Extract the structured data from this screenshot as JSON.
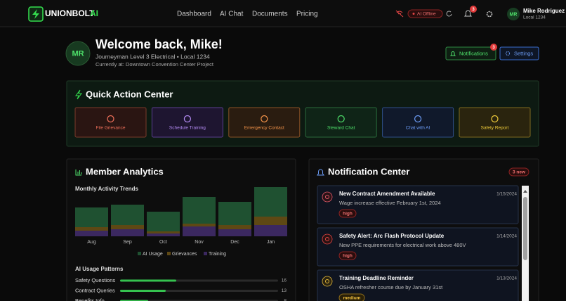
{
  "header": {
    "brand": "UNIONBOLT",
    "brand_suffix": "AI",
    "nav": [
      "Dashboard",
      "AI Chat",
      "Documents",
      "Pricing"
    ],
    "status": "AI Offline",
    "notification_count": "3",
    "user": {
      "initials": "MR",
      "name": "Mike Rodriguez",
      "local": "Local 1234"
    }
  },
  "welcome": {
    "initials": "MR",
    "title": "Welcome back, Mike!",
    "subtitle": "Journeyman Level 3 Electrical • Local 1234",
    "location": "Currently at: Downtown Convention Center Project",
    "buttons": {
      "notifications": "Notifications",
      "badge": "3",
      "settings": "Settings"
    }
  },
  "quick_actions": {
    "title": "Quick Action Center",
    "actions": [
      "File Grievance",
      "Schedule Training",
      "Emergency Contact",
      "Steward Chat",
      "Chat with AI",
      "Safety Report"
    ]
  },
  "analytics": {
    "title": "Member Analytics",
    "chart_data": {
      "type": "bar",
      "title": "Monthly Activity Trends",
      "categories": [
        "Aug",
        "Sep",
        "Oct",
        "Nov",
        "Dec",
        "Jan"
      ],
      "series": [
        {
          "name": "AI Usage",
          "color": "#1f5131",
          "values": [
            28,
            29,
            28,
            38,
            33,
            42
          ]
        },
        {
          "name": "Grievances",
          "color": "#5e4814",
          "values": [
            5,
            6,
            3,
            4,
            6,
            12
          ]
        },
        {
          "name": "Training",
          "color": "#3b2860",
          "values": [
            8,
            10,
            4,
            14,
            10,
            16
          ]
        }
      ]
    },
    "usage": {
      "title": "AI Usage Patterns",
      "rows": [
        {
          "label": "Safety Questions",
          "value": 16
        },
        {
          "label": "Contract Queries",
          "value": 13
        },
        {
          "label": "Benefits Info",
          "value": 8
        }
      ]
    }
  },
  "notifications": {
    "title": "Notification Center",
    "new_label": "3 new",
    "items": [
      {
        "title": "New Contract Amendment Available",
        "date": "1/15/2024",
        "text": "Wage increase effective February 1st, 2024",
        "priority": "high"
      },
      {
        "title": "Safety Alert: Arc Flash Protocol Update",
        "date": "1/14/2024",
        "text": "New PPE requirements for electrical work above 480V",
        "priority": "high"
      },
      {
        "title": "Training Deadline Reminder",
        "date": "1/13/2024",
        "text": "OSHA refresher course due by January 31st",
        "priority": "medium"
      }
    ]
  }
}
